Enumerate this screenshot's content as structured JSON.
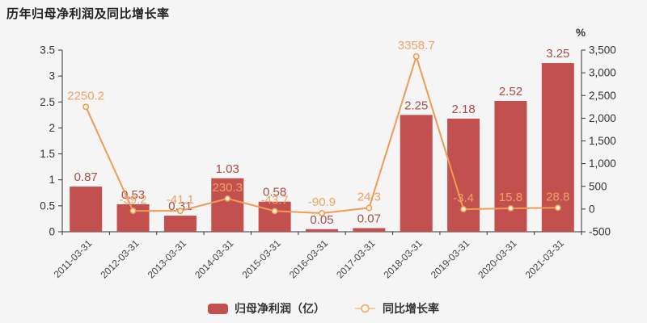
{
  "title": "历年归母净利润及同比增长率",
  "colors": {
    "background": "#f5f5f5",
    "bar": "#c1504e",
    "bar_label": "#a34f4a",
    "line": "#ee9c51",
    "line_label": "#efa263",
    "marker_fill": "#fcf4e4",
    "axis_line": "#333333",
    "axis_text": "#333333",
    "x_tick_text": "#444444"
  },
  "legend": {
    "bar_item": "归母净利润（亿）",
    "line_item": "同比增长率"
  },
  "chart_data": {
    "type": "bar",
    "title": "历年归母净利润及同比增长率",
    "categories": [
      "2011-03-31",
      "2012-03-31",
      "2013-03-31",
      "2014-03-31",
      "2015-03-31",
      "2016-03-31",
      "2017-03-31",
      "2018-03-31",
      "2019-03-31",
      "2020-03-31",
      "2021-03-31"
    ],
    "series": [
      {
        "name": "归母净利润（亿）",
        "type": "bar",
        "axis": "left",
        "values": [
          0.87,
          0.53,
          0.31,
          1.03,
          0.58,
          0.05,
          0.07,
          2.25,
          2.18,
          2.52,
          3.25
        ]
      },
      {
        "name": "同比增长率",
        "type": "line",
        "axis": "right",
        "values": [
          2250.2,
          -39.2,
          -41.1,
          230.3,
          -43.7,
          -90.9,
          24.3,
          3358.7,
          -3.4,
          15.8,
          28.8
        ]
      }
    ],
    "left_axis": {
      "min": 0,
      "max": 3.5,
      "step": 0.5,
      "ticks": [
        "0",
        "0.5",
        "1",
        "1.5",
        "2",
        "2.5",
        "3",
        "3.5"
      ]
    },
    "right_axis": {
      "min": -500,
      "max": 3500,
      "step": 500,
      "unit": "%",
      "ticks": [
        "-500",
        "0",
        "500",
        "1,000",
        "1,500",
        "2,000",
        "2,500",
        "3,000",
        "3,500"
      ]
    },
    "grid": false,
    "legend_position": "bottom"
  }
}
